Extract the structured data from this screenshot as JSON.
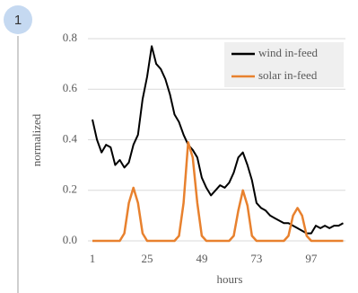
{
  "panel_number": "1",
  "chart_data": {
    "type": "line",
    "xlabel": "hours",
    "ylabel": "normalized",
    "x": [
      1,
      3,
      5,
      7,
      9,
      11,
      13,
      15,
      17,
      19,
      21,
      23,
      25,
      27,
      29,
      31,
      33,
      35,
      37,
      39,
      41,
      43,
      45,
      47,
      49,
      51,
      53,
      55,
      57,
      59,
      61,
      63,
      65,
      67,
      69,
      71,
      73,
      75,
      77,
      79,
      81,
      83,
      85,
      87,
      89,
      91,
      93,
      95,
      97,
      99,
      101,
      103,
      105,
      107,
      109,
      111
    ],
    "series": [
      {
        "name": "wind in-feed",
        "color": "#000000",
        "values": [
          0.48,
          0.4,
          0.35,
          0.38,
          0.37,
          0.3,
          0.32,
          0.29,
          0.31,
          0.38,
          0.42,
          0.56,
          0.65,
          0.77,
          0.7,
          0.68,
          0.64,
          0.58,
          0.5,
          0.47,
          0.42,
          0.38,
          0.36,
          0.33,
          0.25,
          0.21,
          0.18,
          0.2,
          0.22,
          0.21,
          0.23,
          0.27,
          0.33,
          0.35,
          0.3,
          0.24,
          0.15,
          0.13,
          0.12,
          0.1,
          0.09,
          0.08,
          0.07,
          0.07,
          0.06,
          0.05,
          0.04,
          0.03,
          0.03,
          0.06,
          0.05,
          0.06,
          0.05,
          0.06,
          0.06,
          0.07
        ]
      },
      {
        "name": "solar in-feed",
        "color": "#e8812e",
        "values": [
          0,
          0,
          0,
          0,
          0,
          0,
          0,
          0.03,
          0.15,
          0.21,
          0.15,
          0.03,
          0,
          0,
          0,
          0,
          0,
          0,
          0,
          0.02,
          0.15,
          0.39,
          0.33,
          0.15,
          0.02,
          0,
          0,
          0,
          0,
          0,
          0,
          0.02,
          0.12,
          0.2,
          0.14,
          0.02,
          0,
          0,
          0,
          0,
          0,
          0,
          0,
          0.02,
          0.1,
          0.13,
          0.1,
          0.02,
          0,
          0,
          0,
          0,
          0,
          0,
          0,
          0
        ]
      }
    ],
    "xlim": [
      1,
      112
    ],
    "xticks": [
      1,
      25,
      49,
      73,
      97
    ],
    "ylim": [
      0,
      0.8
    ],
    "yticks": [
      {
        "value": 0,
        "label": "0.0"
      },
      0.2,
      0.4,
      0.6,
      0.8
    ],
    "grid": true,
    "legend": "upper right"
  }
}
